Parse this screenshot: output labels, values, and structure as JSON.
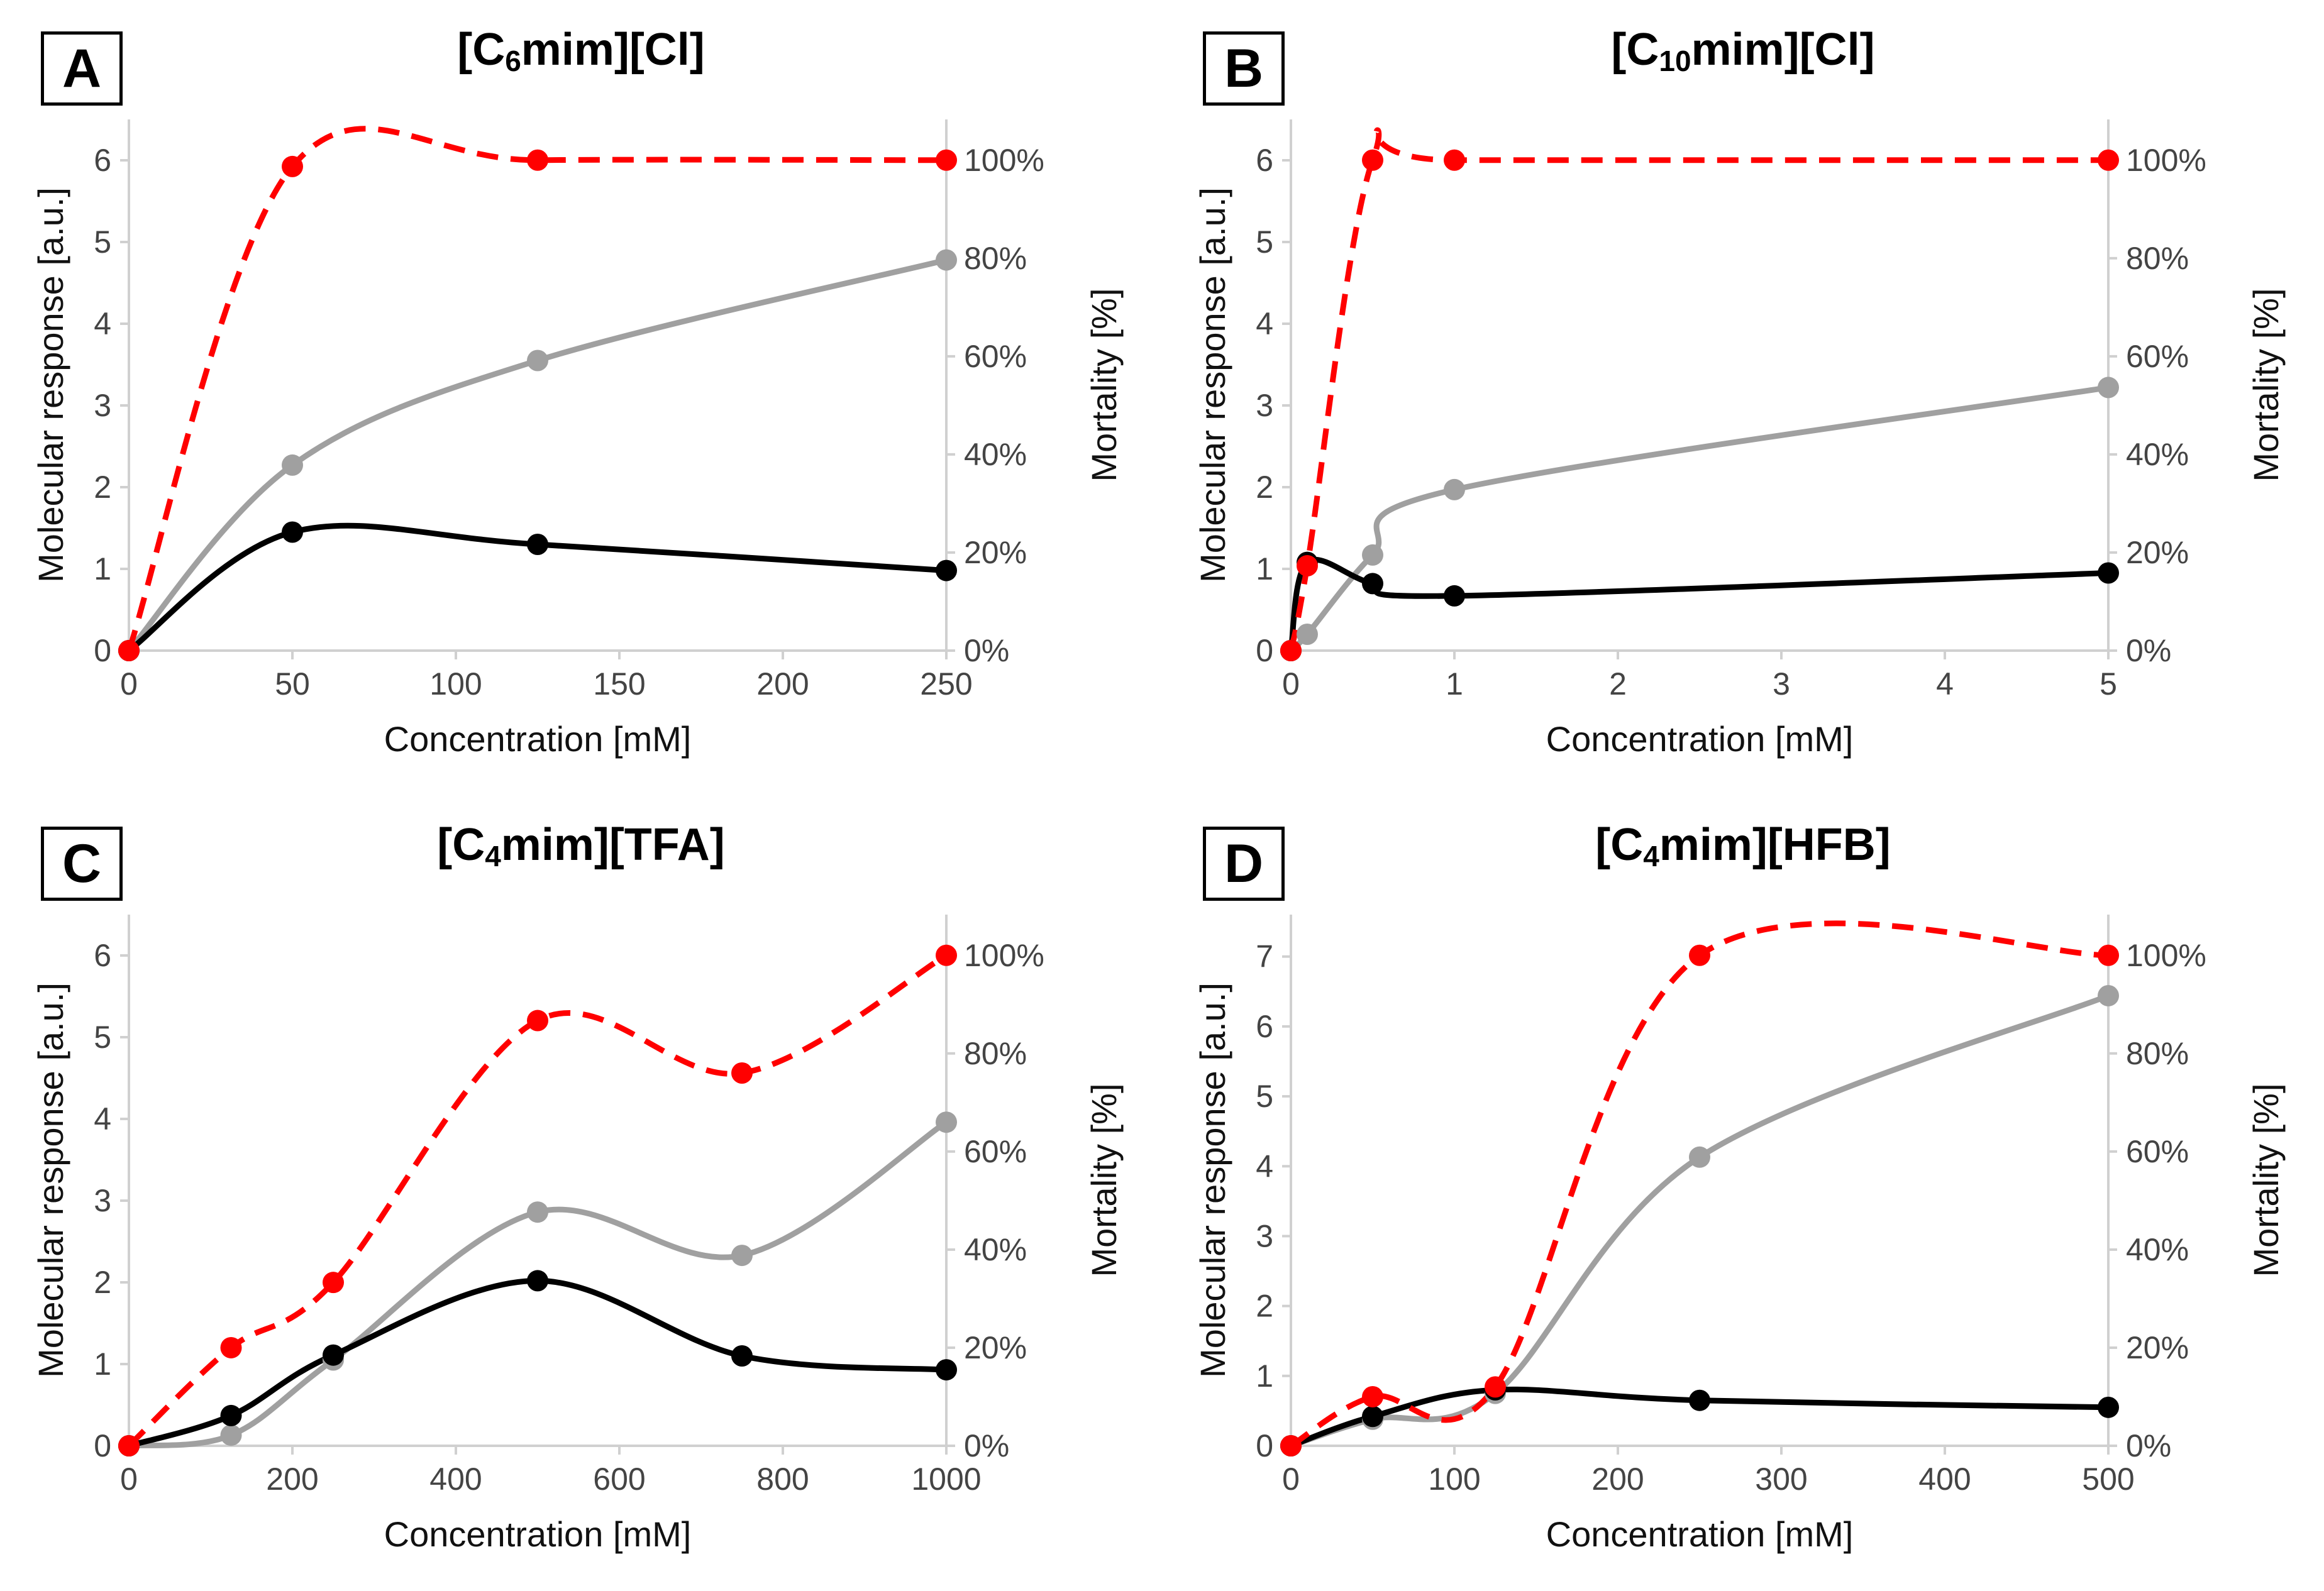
{
  "colors": {
    "gray": "#a0a0a0",
    "black": "#000000",
    "red": "#ff0000",
    "axis": "#d0d0d0"
  },
  "chart_data": [
    {
      "type": "line",
      "panel_label": "A",
      "title_parts": [
        "[C",
        "6",
        "mim][Cl]"
      ],
      "xlabel": "Concentration [mM]",
      "ylabel": "Molecular response [a.u.]",
      "y2label": "Mortality [%]",
      "xlim": [
        0,
        250
      ],
      "ylim": [
        0,
        6.5
      ],
      "y2lim": [
        0,
        1.083
      ],
      "x_ticks": [
        "0",
        "50",
        "100",
        "150",
        "200",
        "250"
      ],
      "y_ticks": [
        "0",
        "1",
        "2",
        "3",
        "4",
        "5",
        "6"
      ],
      "y2_ticks": [
        "0%",
        "20%",
        "40%",
        "60%",
        "80%",
        "100%"
      ],
      "series": [
        {
          "name": "gray",
          "axis": "left",
          "style": "solid",
          "x": [
            0,
            50,
            125,
            250
          ],
          "values": [
            0,
            2.27,
            3.55,
            4.78
          ]
        },
        {
          "name": "black",
          "axis": "left",
          "style": "solid",
          "x": [
            0,
            50,
            125,
            250
          ],
          "values": [
            0,
            1.45,
            1.3,
            0.98
          ]
        },
        {
          "name": "red",
          "axis": "right",
          "style": "dashed",
          "x": [
            0,
            50,
            125,
            250
          ],
          "values": [
            0,
            0.987,
            1.0,
            1.0
          ]
        }
      ]
    },
    {
      "type": "line",
      "panel_label": "B",
      "title_parts": [
        "[C",
        "10",
        "mim][Cl]"
      ],
      "xlabel": "Concentration [mM]",
      "ylabel": "Molecular response [a.u.]",
      "y2label": "Mortality [%]",
      "xlim": [
        0,
        5
      ],
      "ylim": [
        0,
        6.5
      ],
      "y2lim": [
        0,
        1.083
      ],
      "x_ticks": [
        "0",
        "1",
        "2",
        "3",
        "4",
        "5"
      ],
      "y_ticks": [
        "0",
        "1",
        "2",
        "3",
        "4",
        "5",
        "6"
      ],
      "y2_ticks": [
        "0%",
        "20%",
        "40%",
        "60%",
        "80%",
        "100%"
      ],
      "series": [
        {
          "name": "gray",
          "axis": "left",
          "style": "solid",
          "x": [
            0,
            0.1,
            0.5,
            1,
            5
          ],
          "values": [
            0,
            0.2,
            1.17,
            1.97,
            3.22
          ]
        },
        {
          "name": "black",
          "axis": "left",
          "style": "solid",
          "x": [
            0,
            0.1,
            0.5,
            1,
            5
          ],
          "values": [
            0,
            1.08,
            0.82,
            0.67,
            0.95
          ]
        },
        {
          "name": "red",
          "axis": "right",
          "style": "dashed",
          "x": [
            0,
            0.1,
            0.5,
            1,
            5
          ],
          "values": [
            0,
            0.173,
            1.0,
            1.0,
            1.0
          ]
        }
      ]
    },
    {
      "type": "line",
      "panel_label": "C",
      "title_parts": [
        "[C",
        "4",
        "mim][TFA]"
      ],
      "xlabel": "Concentration [mM]",
      "ylabel": "Molecular response [a.u.]",
      "y2label": "Mortality [%]",
      "xlim": [
        0,
        1000
      ],
      "ylim": [
        0,
        6.5
      ],
      "y2lim": [
        0,
        1.083
      ],
      "x_ticks": [
        "0",
        "200",
        "400",
        "600",
        "800",
        "1000"
      ],
      "y_ticks": [
        "0",
        "1",
        "2",
        "3",
        "4",
        "5",
        "6"
      ],
      "y2_ticks": [
        "0%",
        "20%",
        "40%",
        "60%",
        "80%",
        "100%"
      ],
      "series": [
        {
          "name": "gray",
          "axis": "left",
          "style": "solid",
          "x": [
            0,
            125,
            250,
            500,
            750,
            1000
          ],
          "values": [
            0,
            0.13,
            1.05,
            2.86,
            2.33,
            3.96
          ]
        },
        {
          "name": "black",
          "axis": "left",
          "style": "solid",
          "x": [
            0,
            125,
            250,
            500,
            750,
            1000
          ],
          "values": [
            0,
            0.37,
            1.11,
            2.02,
            1.1,
            0.93
          ]
        },
        {
          "name": "red",
          "axis": "right",
          "style": "dashed",
          "x": [
            0,
            125,
            250,
            500,
            750,
            1000
          ],
          "values": [
            0,
            0.2,
            0.333,
            0.867,
            0.76,
            1.0
          ]
        }
      ]
    },
    {
      "type": "line",
      "panel_label": "D",
      "title_parts": [
        "[C",
        "4",
        "mim][HFB]"
      ],
      "xlabel": "Concentration [mM]",
      "ylabel": "Molecular response [a.u.]",
      "y2label": "Mortality [%]",
      "xlim": [
        0,
        500
      ],
      "ylim": [
        0,
        7.6
      ],
      "y2lim": [
        0,
        1.083
      ],
      "x_ticks": [
        "0",
        "100",
        "200",
        "300",
        "400",
        "500"
      ],
      "y_ticks": [
        "0",
        "1",
        "2",
        "3",
        "4",
        "5",
        "6",
        "7"
      ],
      "y2_ticks": [
        "0%",
        "20%",
        "40%",
        "60%",
        "80%",
        "100%"
      ],
      "series": [
        {
          "name": "gray",
          "axis": "left",
          "style": "solid",
          "x": [
            0,
            50,
            125,
            250,
            500
          ],
          "values": [
            0,
            0.38,
            0.75,
            4.13,
            6.44
          ]
        },
        {
          "name": "black",
          "axis": "left",
          "style": "solid",
          "x": [
            0,
            50,
            125,
            250,
            500
          ],
          "values": [
            0,
            0.42,
            0.8,
            0.65,
            0.55
          ]
        },
        {
          "name": "red",
          "axis": "right",
          "style": "dashed",
          "x": [
            0,
            50,
            125,
            250,
            500
          ],
          "values": [
            0,
            0.1,
            0.12,
            1.0,
            1.0
          ]
        }
      ]
    }
  ]
}
